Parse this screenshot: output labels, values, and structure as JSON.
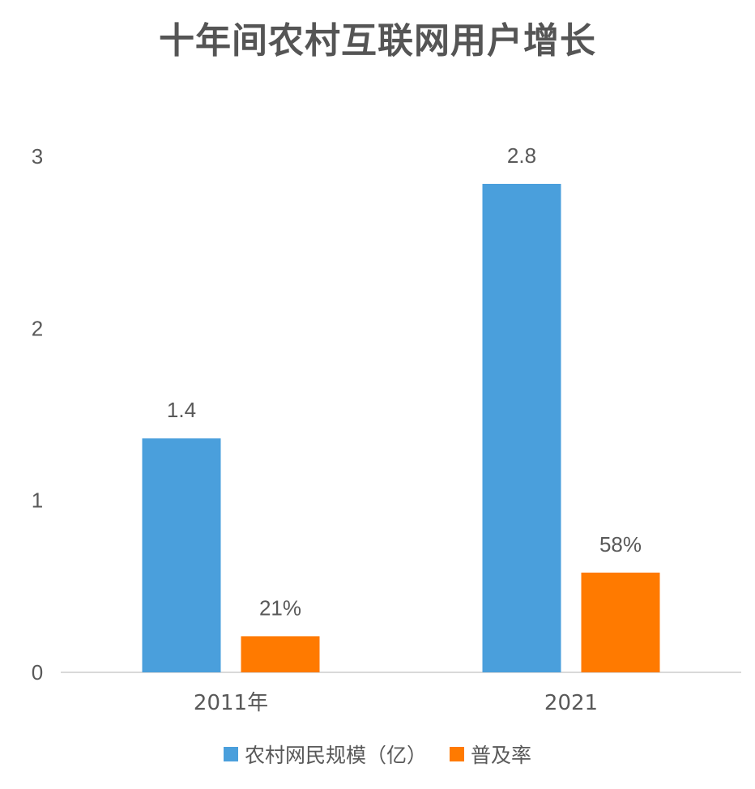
{
  "chart_data": {
    "type": "bar",
    "title": "十年间农村互联网用户增长",
    "categories": [
      "2011年",
      "2021"
    ],
    "series": [
      {
        "name": "农村网民规模（亿）",
        "color": "#4a9fdc",
        "values": [
          1.36,
          2.84
        ],
        "labels": [
          "1.4",
          "2.8"
        ]
      },
      {
        "name": "普及率",
        "color": "#ff7a00",
        "values": [
          0.21,
          0.58
        ],
        "labels": [
          "21%",
          "58%"
        ]
      }
    ],
    "ylim": [
      0,
      3
    ],
    "yticks": [
      "0",
      "1",
      "2",
      "3"
    ],
    "grid": false,
    "legend": "bottom"
  }
}
